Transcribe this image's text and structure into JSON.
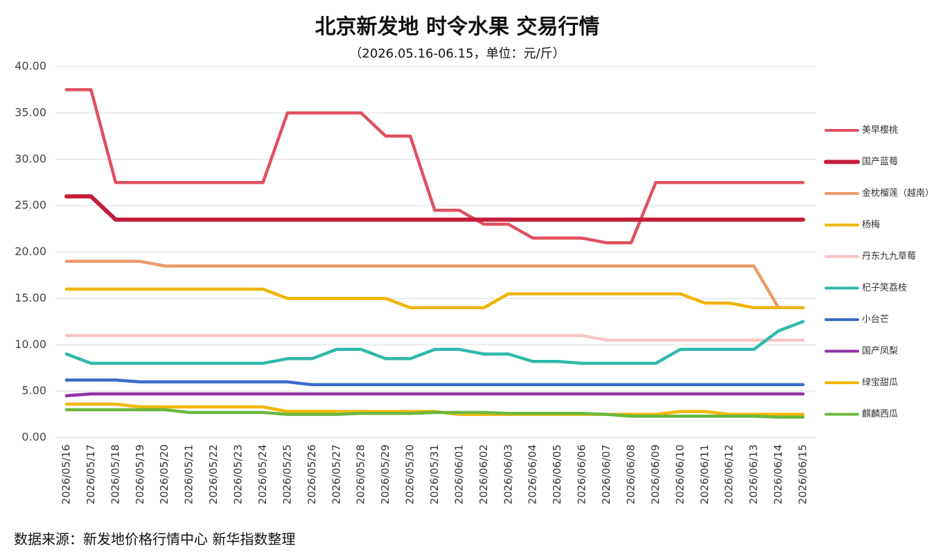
{
  "chart_data": {
    "type": "line",
    "title": "北京新发地 时令水果 交易行情",
    "subtitle": "（2026.05.16-06.15，单位：元/斤）",
    "source": "数据来源：新发地价格行情中心 新华指数整理",
    "categories": [
      "2026/05/16",
      "2026/05/17",
      "2026/05/18",
      "2026/05/19",
      "2026/05/20",
      "2026/05/21",
      "2026/05/22",
      "2026/05/23",
      "2026/05/24",
      "2026/05/25",
      "2026/05/26",
      "2026/05/27",
      "2026/05/28",
      "2026/05/29",
      "2026/05/30",
      "2026/05/31",
      "2026/06/01",
      "2026/06/02",
      "2026/06/03",
      "2026/06/04",
      "2026/06/05",
      "2026/06/06",
      "2026/06/07",
      "2026/06/08",
      "2026/06/09",
      "2026/06/10",
      "2026/06/11",
      "2026/06/12",
      "2026/06/13",
      "2026/06/14",
      "2026/06/15"
    ],
    "ylim": [
      0,
      40
    ],
    "yticks": [
      {
        "value": 0,
        "label": "0.00"
      },
      {
        "value": 5,
        "label": "5.00"
      },
      {
        "value": 10,
        "label": "10.00"
      },
      {
        "value": 15,
        "label": "15.00"
      },
      {
        "value": 20,
        "label": "20.00"
      },
      {
        "value": 25,
        "label": "25.00"
      },
      {
        "value": 30,
        "label": "30.00"
      },
      {
        "value": 35,
        "label": "35.00"
      },
      {
        "value": 40,
        "label": "40.00"
      }
    ],
    "grid": true,
    "legend": "right",
    "series": [
      {
        "name": "美早樱桃",
        "color": "#e0505f",
        "values": [
          37.5,
          37.5,
          27.5,
          27.5,
          27.5,
          27.5,
          27.5,
          27.5,
          27.5,
          35,
          35,
          35,
          35,
          32.5,
          32.5,
          24.5,
          24.5,
          23,
          23,
          21.5,
          21.5,
          21.5,
          21,
          21,
          27.5,
          27.5,
          27.5,
          27.5,
          27.5,
          27.5,
          27.5
        ]
      },
      {
        "name": "国产蓝莓",
        "color": "#c41e3a",
        "values": [
          26,
          26,
          23.5,
          23.5,
          23.5,
          23.5,
          23.5,
          23.5,
          23.5,
          23.5,
          23.5,
          23.5,
          23.5,
          23.5,
          23.5,
          23.5,
          23.5,
          23.5,
          23.5,
          23.5,
          23.5,
          23.5,
          23.5,
          23.5,
          23.5,
          23.5,
          23.5,
          23.5,
          23.5,
          23.5,
          23.5
        ]
      },
      {
        "name": "金枕榴莲（越南）",
        "color": "#eb9a6a",
        "values": [
          19,
          19,
          19,
          19,
          18.5,
          18.5,
          18.5,
          18.5,
          18.5,
          18.5,
          18.5,
          18.5,
          18.5,
          18.5,
          18.5,
          18.5,
          18.5,
          18.5,
          18.5,
          18.5,
          18.5,
          18.5,
          18.5,
          18.5,
          18.5,
          18.5,
          18.5,
          18.5,
          18.5,
          14,
          14
        ]
      },
      {
        "name": "杨梅",
        "color": "#f0b400",
        "values": [
          16,
          16,
          16,
          16,
          16,
          16,
          16,
          16,
          16,
          15,
          15,
          15,
          15,
          15,
          14,
          14,
          14,
          14,
          15.5,
          15.5,
          15.5,
          15.5,
          15.5,
          15.5,
          15.5,
          15.5,
          14.5,
          14.5,
          14,
          14,
          14
        ]
      },
      {
        "name": "丹东九九草莓",
        "color": "#f8c4c6",
        "values": [
          11,
          11,
          11,
          11,
          11,
          11,
          11,
          11,
          11,
          11,
          11,
          11,
          11,
          11,
          11,
          11,
          11,
          11,
          11,
          11,
          11,
          11,
          10.5,
          10.5,
          10.5,
          10.5,
          10.5,
          10.5,
          10.5,
          10.5,
          10.5
        ]
      },
      {
        "name": "杞子笑荔枝",
        "color": "#2fb9a9",
        "values": [
          9,
          8,
          8,
          8,
          8,
          8,
          8,
          8,
          8,
          8.5,
          8.5,
          9.5,
          9.5,
          8.5,
          8.5,
          9.5,
          9.5,
          9,
          9,
          8.2,
          8.2,
          8,
          8,
          8,
          8,
          9.5,
          9.5,
          9.5,
          9.5,
          11.5,
          12.5
        ]
      },
      {
        "name": "小台芒",
        "color": "#3a6cc8",
        "values": [
          6.2,
          6.2,
          6.2,
          6,
          6,
          6,
          6,
          6,
          6,
          6,
          5.7,
          5.7,
          5.7,
          5.7,
          5.7,
          5.7,
          5.7,
          5.7,
          5.7,
          5.7,
          5.7,
          5.7,
          5.7,
          5.7,
          5.7,
          5.7,
          5.7,
          5.7,
          5.7,
          5.7,
          5.7
        ]
      },
      {
        "name": "国产凤梨",
        "color": "#9232a8",
        "values": [
          4.5,
          4.7,
          4.7,
          4.7,
          4.7,
          4.7,
          4.7,
          4.7,
          4.7,
          4.7,
          4.7,
          4.7,
          4.7,
          4.7,
          4.7,
          4.7,
          4.7,
          4.7,
          4.7,
          4.7,
          4.7,
          4.7,
          4.7,
          4.7,
          4.7,
          4.7,
          4.7,
          4.7,
          4.7,
          4.7,
          4.7
        ]
      },
      {
        "name": "绿宝甜瓜",
        "color": "#f2b705",
        "values": [
          3.6,
          3.6,
          3.6,
          3.3,
          3.3,
          3.3,
          3.3,
          3.3,
          3.3,
          2.8,
          2.8,
          2.8,
          2.8,
          2.8,
          2.8,
          2.8,
          2.5,
          2.5,
          2.5,
          2.5,
          2.5,
          2.5,
          2.5,
          2.5,
          2.5,
          2.8,
          2.8,
          2.5,
          2.5,
          2.5,
          2.5
        ]
      },
      {
        "name": "麒麟西瓜",
        "color": "#6cb83e",
        "values": [
          3,
          3,
          3,
          3,
          3,
          2.7,
          2.7,
          2.7,
          2.7,
          2.5,
          2.5,
          2.5,
          2.6,
          2.6,
          2.6,
          2.7,
          2.7,
          2.7,
          2.6,
          2.6,
          2.6,
          2.6,
          2.5,
          2.3,
          2.3,
          2.3,
          2.3,
          2.3,
          2.3,
          2.2,
          2.2
        ]
      }
    ]
  }
}
